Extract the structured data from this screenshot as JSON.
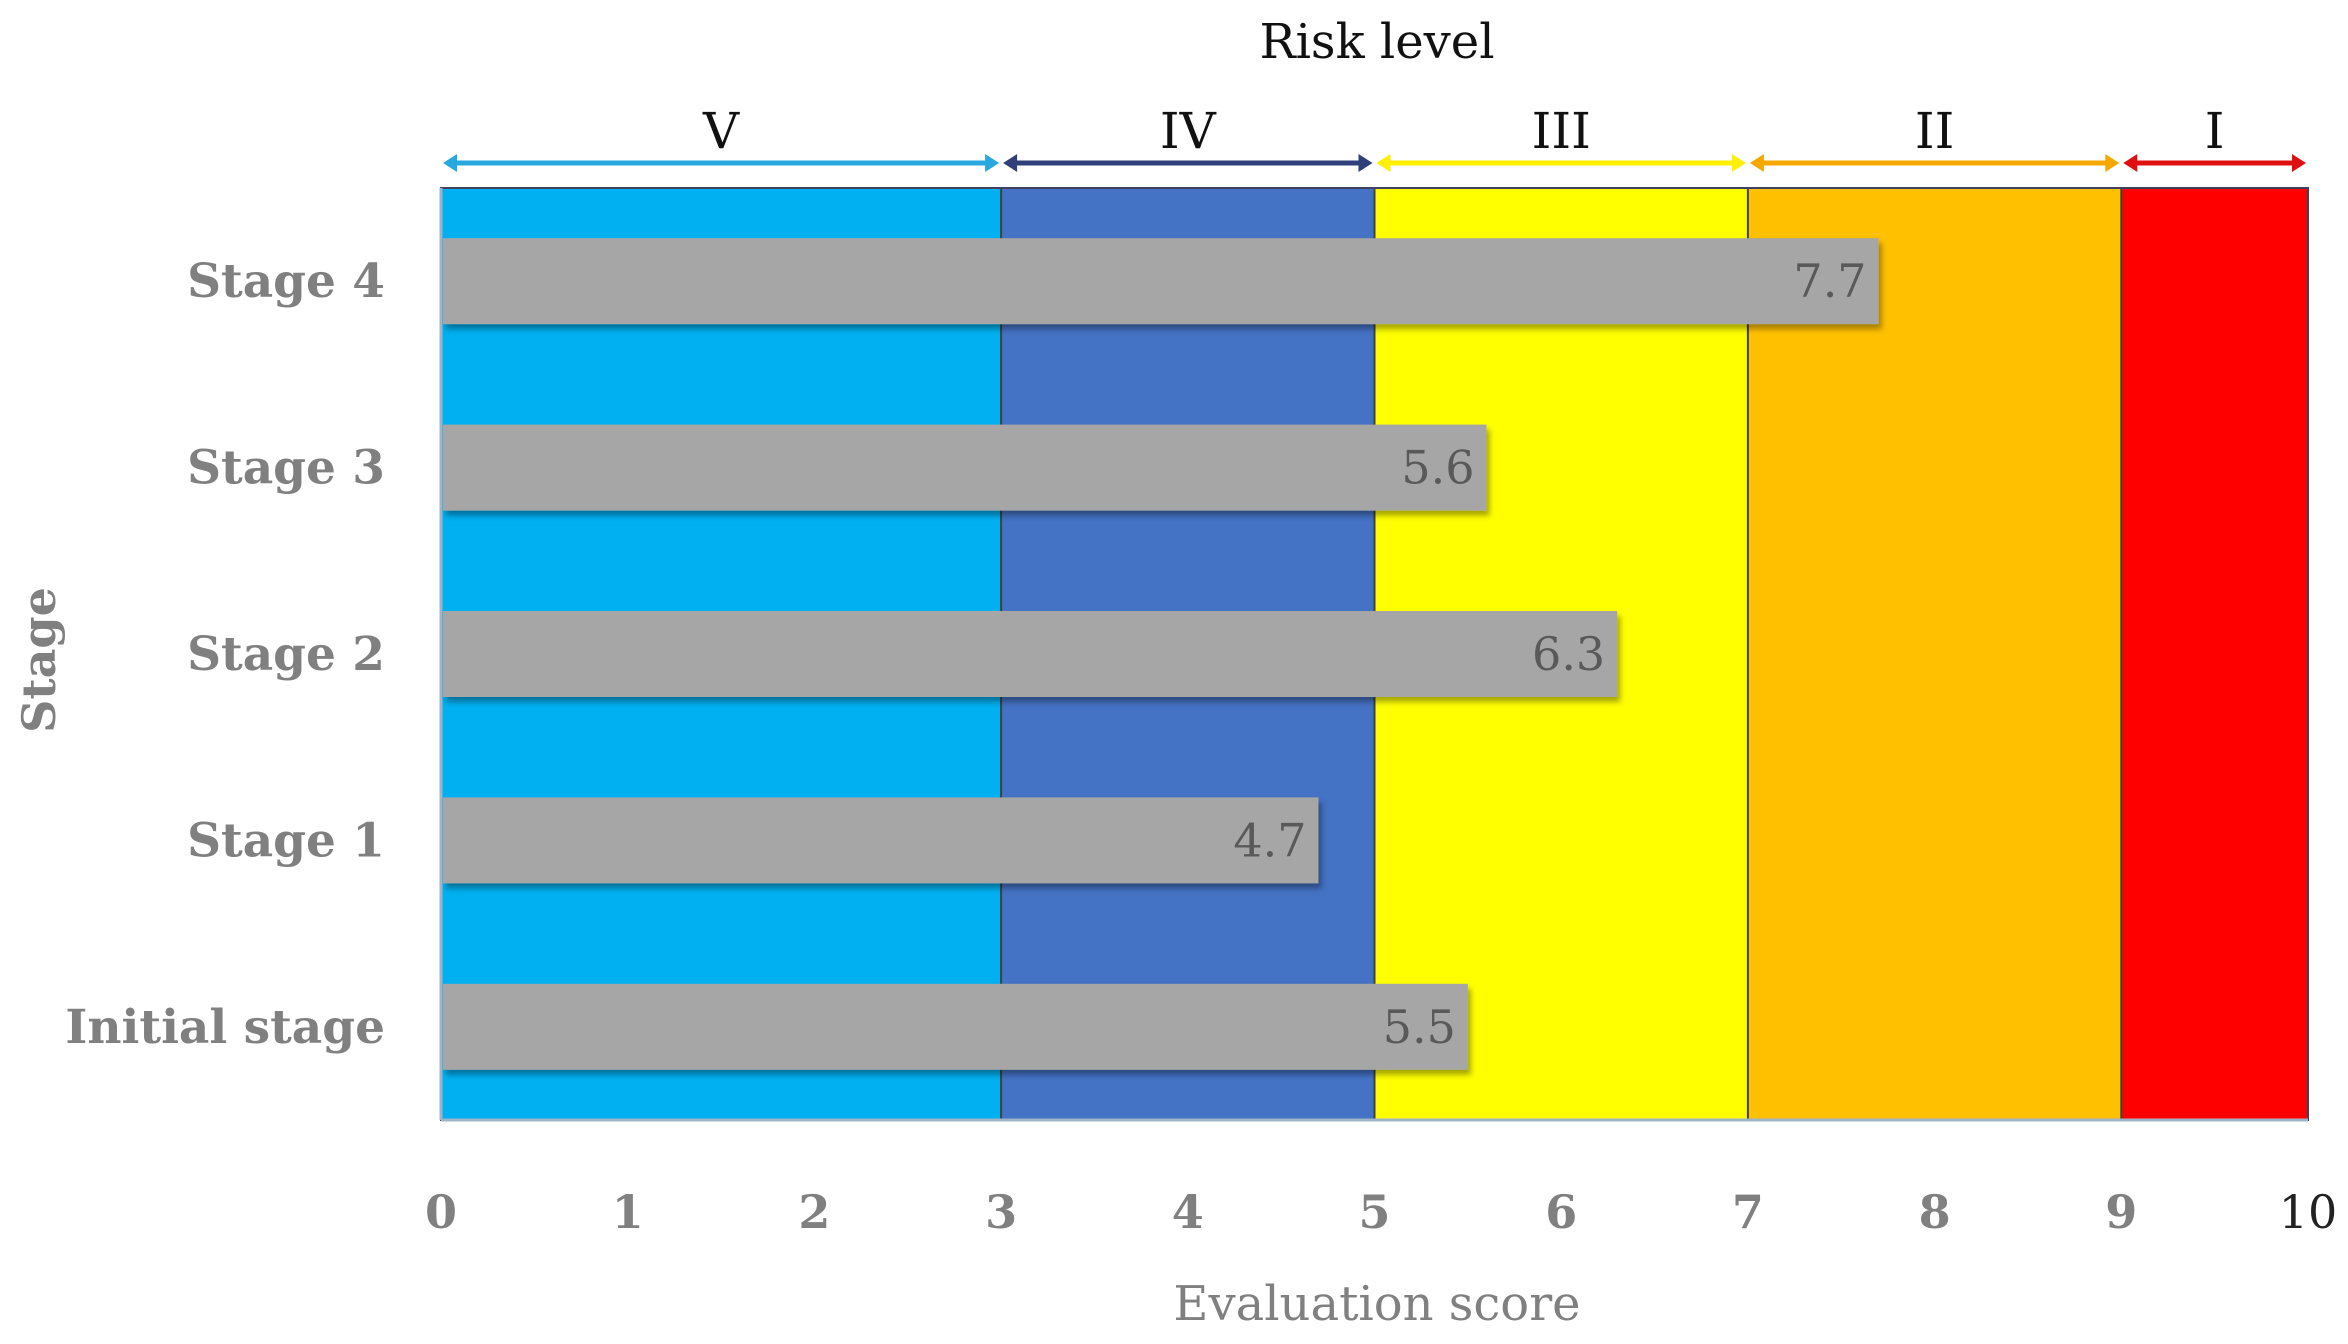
{
  "chart_data": {
    "type": "bar",
    "orientation": "horizontal",
    "title": "Risk level",
    "xlabel": "Evaluation score",
    "ylabel": "Stage",
    "xlim": [
      0,
      10
    ],
    "x_ticks": [
      "0",
      "1",
      "2",
      "3",
      "4",
      "5",
      "6",
      "7",
      "8",
      "9",
      "10"
    ],
    "categories": [
      "Initial stage",
      "Stage 1",
      "Stage 2",
      "Stage 3",
      "Stage 4"
    ],
    "values": [
      5.5,
      4.7,
      6.3,
      5.6,
      7.7
    ],
    "value_labels": [
      "5.5",
      "4.7",
      "6.3",
      "5.6",
      "7.7"
    ],
    "bar_color": "#a6a6a6",
    "risk_bands": [
      {
        "label": "V",
        "from": 0,
        "to": 3,
        "color": "#00b0f0",
        "arrow_color": "#29a8e0"
      },
      {
        "label": "IV",
        "from": 3,
        "to": 5,
        "color": "#4472c4",
        "arrow_color": "#2f3f7a"
      },
      {
        "label": "III",
        "from": 5,
        "to": 7,
        "color": "#ffff00",
        "arrow_color": "#ffef00"
      },
      {
        "label": "II",
        "from": 7,
        "to": 9,
        "color": "#ffc000",
        "arrow_color": "#f7a800"
      },
      {
        "label": "I",
        "from": 9,
        "to": 10,
        "color": "#ff0000",
        "arrow_color": "#e01010"
      }
    ]
  }
}
